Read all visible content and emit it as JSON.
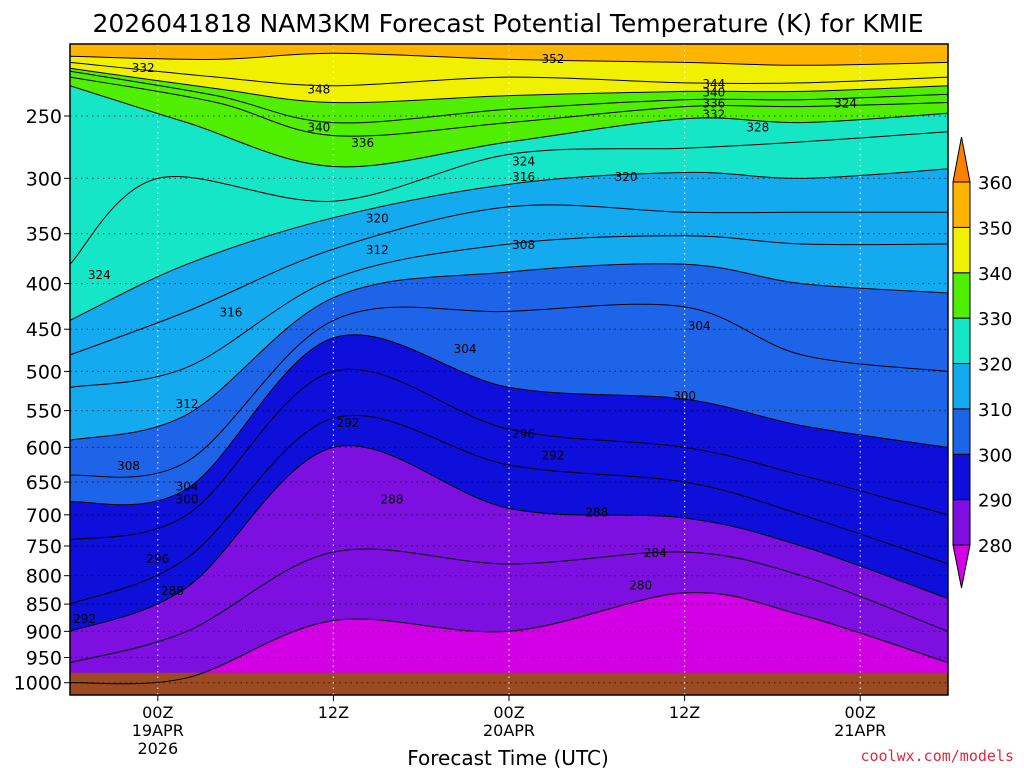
{
  "chart_data": {
    "type": "heatmap",
    "title": "2026041818 NAM3KM Forecast Potential Temperature (K) for KMIE",
    "xlabel": "Forecast Time (UTC)",
    "ylabel": "",
    "credit": "coolwx.com/models",
    "x_ticks": [
      {
        "hours_from_init": 6,
        "line1": "00Z",
        "line2": "19APR",
        "line3": "2026"
      },
      {
        "hours_from_init": 18,
        "line1": "12Z",
        "line2": "",
        "line3": ""
      },
      {
        "hours_from_init": 30,
        "line1": "00Z",
        "line2": "20APR",
        "line3": ""
      },
      {
        "hours_from_init": 42,
        "line1": "12Z",
        "line2": "",
        "line3": ""
      },
      {
        "hours_from_init": 54,
        "line1": "00Z",
        "line2": "21APR",
        "line3": ""
      }
    ],
    "x_range_hours": [
      0,
      60
    ],
    "y_ticks_hpa": [
      250,
      300,
      350,
      400,
      450,
      500,
      550,
      600,
      650,
      700,
      750,
      800,
      850,
      900,
      950,
      1000
    ],
    "y_range_hpa": [
      200,
      1025
    ],
    "colorbar": {
      "levels": [
        280,
        290,
        300,
        310,
        320,
        330,
        340,
        350,
        360
      ],
      "tick_labels": [
        "280",
        "290",
        "300",
        "310",
        "320",
        "330",
        "340",
        "350",
        "360"
      ],
      "colors": [
        "#d300e6",
        "#7d0fe0",
        "#0f0fdc",
        "#1e64e8",
        "#14aaf0",
        "#16e6c8",
        "#50ee00",
        "#f0f000",
        "#ffb400",
        "#ff8000"
      ]
    },
    "ground_color": "#9c4a22",
    "surface_hpa": 980,
    "isentropes": [
      {
        "theta": 352,
        "pts": [
          [
            0,
            208
          ],
          [
            10,
            210
          ],
          [
            18,
            206
          ],
          [
            30,
            210
          ],
          [
            42,
            212
          ],
          [
            50,
            214
          ],
          [
            60,
            212
          ]
        ]
      },
      {
        "theta": 344,
        "pts": [
          [
            0,
            212
          ],
          [
            10,
            222
          ],
          [
            18,
            228
          ],
          [
            30,
            222
          ],
          [
            42,
            226
          ],
          [
            50,
            226
          ],
          [
            60,
            222
          ]
        ]
      },
      {
        "theta": 340,
        "pts": [
          [
            0,
            216
          ],
          [
            10,
            230
          ],
          [
            18,
            240
          ],
          [
            30,
            235
          ],
          [
            42,
            232
          ],
          [
            50,
            232
          ],
          [
            60,
            228
          ]
        ]
      },
      {
        "theta": 336,
        "pts": [
          [
            0,
            218
          ],
          [
            10,
            235
          ],
          [
            18,
            255
          ],
          [
            30,
            245
          ],
          [
            42,
            238
          ],
          [
            50,
            238
          ],
          [
            60,
            234
          ]
        ]
      },
      {
        "theta": 332,
        "pts": [
          [
            0,
            222
          ],
          [
            10,
            240
          ],
          [
            18,
            265
          ],
          [
            30,
            255
          ],
          [
            42,
            243
          ],
          [
            50,
            243
          ],
          [
            60,
            240
          ]
        ]
      },
      {
        "theta": 328,
        "pts": [
          [
            0,
            228
          ],
          [
            8,
            255
          ],
          [
            18,
            290
          ],
          [
            30,
            270
          ],
          [
            42,
            252
          ],
          [
            50,
            255
          ],
          [
            60,
            248
          ]
        ]
      },
      {
        "theta": 324,
        "pts": [
          [
            0,
            380
          ],
          [
            6,
            300
          ],
          [
            18,
            320
          ],
          [
            30,
            280
          ],
          [
            42,
            275
          ],
          [
            50,
            270
          ],
          [
            60,
            262
          ]
        ]
      },
      {
        "theta": 320,
        "pts": [
          [
            0,
            440
          ],
          [
            8,
            380
          ],
          [
            18,
            335
          ],
          [
            30,
            305
          ],
          [
            42,
            295
          ],
          [
            50,
            300
          ],
          [
            60,
            292
          ]
        ]
      },
      {
        "theta": 316,
        "pts": [
          [
            0,
            480
          ],
          [
            8,
            430
          ],
          [
            18,
            365
          ],
          [
            30,
            325
          ],
          [
            42,
            330
          ],
          [
            50,
            330
          ],
          [
            60,
            330
          ]
        ]
      },
      {
        "theta": 312,
        "pts": [
          [
            0,
            520
          ],
          [
            8,
            495
          ],
          [
            18,
            395
          ],
          [
            30,
            360
          ],
          [
            42,
            352
          ],
          [
            50,
            360
          ],
          [
            60,
            360
          ]
        ]
      },
      {
        "theta": 308,
        "pts": [
          [
            0,
            590
          ],
          [
            8,
            555
          ],
          [
            18,
            415
          ],
          [
            30,
            388
          ],
          [
            42,
            380
          ],
          [
            50,
            400
          ],
          [
            60,
            410
          ]
        ]
      },
      {
        "theta": 304,
        "pts": [
          [
            0,
            640
          ],
          [
            8,
            620
          ],
          [
            18,
            440
          ],
          [
            30,
            430
          ],
          [
            42,
            425
          ],
          [
            50,
            480
          ],
          [
            60,
            500
          ]
        ]
      },
      {
        "theta": 300,
        "pts": [
          [
            0,
            680
          ],
          [
            8,
            660
          ],
          [
            18,
            460
          ],
          [
            30,
            520
          ],
          [
            42,
            535
          ],
          [
            50,
            570
          ],
          [
            60,
            600
          ]
        ]
      },
      {
        "theta": 296,
        "pts": [
          [
            0,
            740
          ],
          [
            8,
            700
          ],
          [
            18,
            500
          ],
          [
            30,
            575
          ],
          [
            42,
            600
          ],
          [
            50,
            640
          ],
          [
            60,
            700
          ]
        ]
      },
      {
        "theta": 292,
        "pts": [
          [
            0,
            850
          ],
          [
            8,
            770
          ],
          [
            18,
            560
          ],
          [
            30,
            625
          ],
          [
            42,
            650
          ],
          [
            50,
            700
          ],
          [
            60,
            780
          ]
        ]
      },
      {
        "theta": 288,
        "pts": [
          [
            0,
            900
          ],
          [
            8,
            820
          ],
          [
            18,
            600
          ],
          [
            30,
            690
          ],
          [
            42,
            705
          ],
          [
            50,
            750
          ],
          [
            60,
            840
          ]
        ]
      },
      {
        "theta": 284,
        "pts": [
          [
            0,
            960
          ],
          [
            8,
            900
          ],
          [
            18,
            760
          ],
          [
            30,
            780
          ],
          [
            42,
            760
          ],
          [
            50,
            800
          ],
          [
            60,
            900
          ]
        ]
      },
      {
        "theta": 280,
        "pts": [
          [
            0,
            1000
          ],
          [
            8,
            990
          ],
          [
            18,
            880
          ],
          [
            30,
            900
          ],
          [
            42,
            830
          ],
          [
            50,
            870
          ],
          [
            60,
            960
          ]
        ]
      }
    ],
    "contour_labels": [
      {
        "text": "352",
        "hour": 33,
        "hpa": 209
      },
      {
        "text": "344",
        "hour": 44,
        "hpa": 226
      },
      {
        "text": "340",
        "hour": 44,
        "hpa": 232
      },
      {
        "text": "336",
        "hour": 44,
        "hpa": 240
      },
      {
        "text": "332",
        "hour": 44,
        "hpa": 248
      },
      {
        "text": "348",
        "hour": 17,
        "hpa": 230
      },
      {
        "text": "340",
        "hour": 17,
        "hpa": 258
      },
      {
        "text": "336",
        "hour": 20,
        "hpa": 270
      },
      {
        "text": "332",
        "hour": 5,
        "hpa": 215
      },
      {
        "text": "328",
        "hour": 47,
        "hpa": 258
      },
      {
        "text": "324",
        "hour": 53,
        "hpa": 240
      },
      {
        "text": "324",
        "hour": 31,
        "hpa": 285
      },
      {
        "text": "320",
        "hour": 38,
        "hpa": 298
      },
      {
        "text": "316",
        "hour": 31,
        "hpa": 298
      },
      {
        "text": "320",
        "hour": 21,
        "hpa": 335
      },
      {
        "text": "312",
        "hour": 21,
        "hpa": 365
      },
      {
        "text": "308",
        "hour": 31,
        "hpa": 360
      },
      {
        "text": "324",
        "hour": 2,
        "hpa": 390
      },
      {
        "text": "316",
        "hour": 11,
        "hpa": 430
      },
      {
        "text": "304",
        "hour": 27,
        "hpa": 472
      },
      {
        "text": "304",
        "hour": 43,
        "hpa": 445
      },
      {
        "text": "312",
        "hour": 8,
        "hpa": 540
      },
      {
        "text": "300",
        "hour": 42,
        "hpa": 530
      },
      {
        "text": "292",
        "hour": 19,
        "hpa": 565
      },
      {
        "text": "296",
        "hour": 31,
        "hpa": 580
      },
      {
        "text": "292",
        "hour": 33,
        "hpa": 610
      },
      {
        "text": "308",
        "hour": 4,
        "hpa": 625
      },
      {
        "text": "304",
        "hour": 8,
        "hpa": 655
      },
      {
        "text": "300",
        "hour": 8,
        "hpa": 675
      },
      {
        "text": "288",
        "hour": 22,
        "hpa": 675
      },
      {
        "text": "288",
        "hour": 36,
        "hpa": 695
      },
      {
        "text": "284",
        "hour": 40,
        "hpa": 760
      },
      {
        "text": "296",
        "hour": 6,
        "hpa": 770
      },
      {
        "text": "288",
        "hour": 7,
        "hpa": 825
      },
      {
        "text": "280",
        "hour": 39,
        "hpa": 815
      },
      {
        "text": "292",
        "hour": 1,
        "hpa": 875
      }
    ]
  }
}
